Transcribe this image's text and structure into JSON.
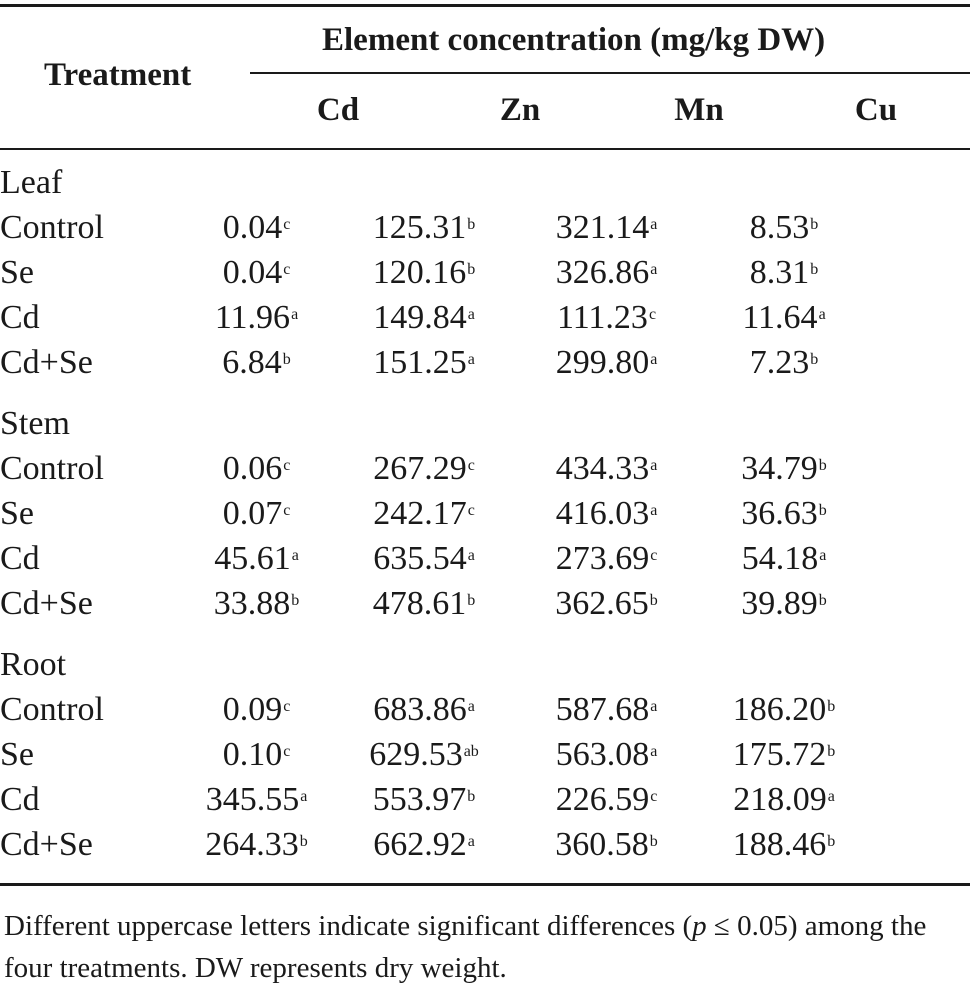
{
  "header": {
    "treatment_label": "Treatment",
    "group_label": "Element concentration (mg/kg DW)",
    "columns": [
      "Cd",
      "Zn",
      "Mn",
      "Cu"
    ]
  },
  "sections": [
    {
      "name": "Leaf",
      "rows": [
        {
          "label": "Control",
          "cells": [
            {
              "v": "0.04",
              "s": "c"
            },
            {
              "v": "125.31",
              "s": "b"
            },
            {
              "v": "321.14",
              "s": "a"
            },
            {
              "v": "8.53",
              "s": "b"
            }
          ]
        },
        {
          "label": "Se",
          "cells": [
            {
              "v": "0.04",
              "s": "c"
            },
            {
              "v": "120.16",
              "s": "b"
            },
            {
              "v": "326.86",
              "s": "a"
            },
            {
              "v": "8.31",
              "s": "b"
            }
          ]
        },
        {
          "label": "Cd",
          "cells": [
            {
              "v": "11.96",
              "s": "a"
            },
            {
              "v": "149.84",
              "s": "a"
            },
            {
              "v": "111.23",
              "s": "c"
            },
            {
              "v": "11.64",
              "s": "a"
            }
          ]
        },
        {
          "label": "Cd+Se",
          "cells": [
            {
              "v": "6.84",
              "s": "b"
            },
            {
              "v": "151.25",
              "s": "a"
            },
            {
              "v": "299.80",
              "s": "a"
            },
            {
              "v": "7.23",
              "s": "b"
            }
          ]
        }
      ]
    },
    {
      "name": "Stem",
      "rows": [
        {
          "label": "Control",
          "cells": [
            {
              "v": "0.06",
              "s": "c"
            },
            {
              "v": "267.29",
              "s": "c"
            },
            {
              "v": "434.33",
              "s": "a"
            },
            {
              "v": "34.79",
              "s": "b"
            }
          ]
        },
        {
          "label": "Se",
          "cells": [
            {
              "v": "0.07",
              "s": "c"
            },
            {
              "v": "242.17",
              "s": "c"
            },
            {
              "v": "416.03",
              "s": "a"
            },
            {
              "v": "36.63",
              "s": "b"
            }
          ]
        },
        {
          "label": "Cd",
          "cells": [
            {
              "v": "45.61",
              "s": "a"
            },
            {
              "v": "635.54",
              "s": "a"
            },
            {
              "v": "273.69",
              "s": "c"
            },
            {
              "v": "54.18",
              "s": "a"
            }
          ]
        },
        {
          "label": "Cd+Se",
          "cells": [
            {
              "v": "33.88",
              "s": "b"
            },
            {
              "v": "478.61",
              "s": "b"
            },
            {
              "v": "362.65",
              "s": "b"
            },
            {
              "v": "39.89",
              "s": "b"
            }
          ]
        }
      ]
    },
    {
      "name": "Root",
      "rows": [
        {
          "label": "Control",
          "cells": [
            {
              "v": "0.09",
              "s": "c"
            },
            {
              "v": "683.86",
              "s": "a"
            },
            {
              "v": "587.68",
              "s": "a"
            },
            {
              "v": "186.20",
              "s": "b"
            }
          ]
        },
        {
          "label": "Se",
          "cells": [
            {
              "v": "0.10",
              "s": "c"
            },
            {
              "v": "629.53",
              "s": "ab"
            },
            {
              "v": "563.08",
              "s": "a"
            },
            {
              "v": "175.72",
              "s": "b"
            }
          ]
        },
        {
          "label": "Cd",
          "cells": [
            {
              "v": "345.55",
              "s": "a"
            },
            {
              "v": "553.97",
              "s": "b"
            },
            {
              "v": "226.59",
              "s": "c"
            },
            {
              "v": "218.09",
              "s": "a"
            }
          ]
        },
        {
          "label": "Cd+Se",
          "cells": [
            {
              "v": "264.33",
              "s": "b"
            },
            {
              "v": "662.92",
              "s": "a"
            },
            {
              "v": "360.58",
              "s": "b"
            },
            {
              "v": "188.46",
              "s": "b"
            }
          ]
        }
      ]
    }
  ],
  "footnote": {
    "part1": "Different uppercase letters indicate significant differences (",
    "p_symbol": "p",
    "part2": " ≤ 0.05) among the four treatments. DW represents dry weight."
  }
}
